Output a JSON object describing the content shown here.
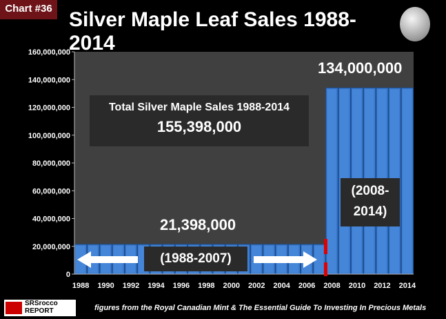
{
  "badge": "Chart #36",
  "logo_text": "SRSrocco REPORT",
  "source": "figures from the Royal Canadian Mint & The Essential Guide To Investing In Precious Metals",
  "colors": {
    "bar": "#3b7bd0",
    "plot_bg": "#404040",
    "badge": "#6e1419",
    "divider": "#e00000"
  },
  "annotations": {
    "total_label": "Total Silver Maple Sales 1988-2014",
    "total_value": "155,398,000",
    "early_value": "21,398,000",
    "early_range": "(1988-2007)",
    "late_value": "134,000,000",
    "late_range_1": "(2008-",
    "late_range_2": "2014)"
  },
  "chart_data": {
    "type": "bar",
    "title": "Silver Maple Leaf Sales 1988-2014",
    "xlabel": "",
    "ylabel": "",
    "ylim": [
      0,
      160000000
    ],
    "yticks": [
      "0",
      "20,000,000",
      "40,000,000",
      "60,000,000",
      "80,000,000",
      "100,000,000",
      "120,000,000",
      "140,000,000",
      "160,000,000"
    ],
    "categories": [
      1988,
      1989,
      1990,
      1991,
      1992,
      1993,
      1994,
      1995,
      1996,
      1997,
      1998,
      1999,
      2000,
      2001,
      2002,
      2003,
      2004,
      2005,
      2006,
      2007,
      2008,
      2009,
      2010,
      2011,
      2012,
      2013,
      2014
    ],
    "xtick_labels": [
      "1988",
      "1990",
      "1992",
      "1994",
      "1996",
      "1998",
      "2000",
      "2002",
      "2004",
      "2006",
      "2008",
      "2010",
      "2012",
      "2014"
    ],
    "values": [
      21398000,
      21398000,
      21398000,
      21398000,
      21398000,
      21398000,
      21398000,
      21398000,
      21398000,
      21398000,
      21398000,
      21398000,
      21398000,
      21398000,
      21398000,
      21398000,
      21398000,
      21398000,
      21398000,
      21398000,
      134000000,
      134000000,
      134000000,
      134000000,
      134000000,
      134000000,
      134000000
    ],
    "grid": false,
    "legend": "none"
  }
}
